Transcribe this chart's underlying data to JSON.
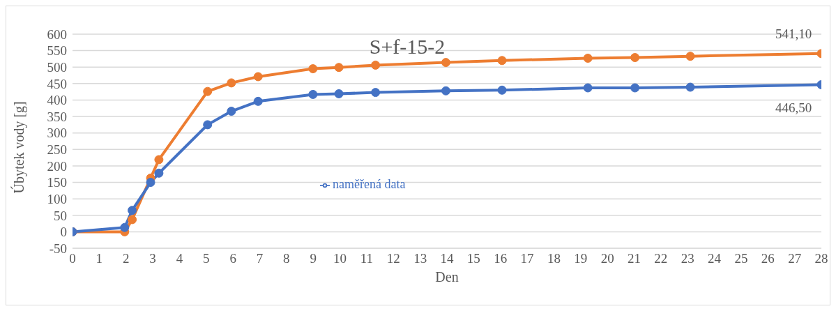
{
  "chart_data": {
    "type": "line",
    "title": "S+f-15-2",
    "xlabel": "Den",
    "ylabel": "Úbytek vody [g]",
    "x": [
      0,
      1.95,
      2.23,
      2.92,
      3.23,
      5.05,
      5.94,
      6.94,
      8.99,
      9.96,
      11.33,
      13.96,
      16.06,
      19.27,
      21.03,
      23.1,
      28
    ],
    "series": [
      {
        "color": "#ed7d31",
        "values": [
          0,
          0,
          37,
          163,
          219,
          426,
          452,
          471,
          495,
          499,
          506,
          514,
          520,
          527,
          529,
          533,
          541.1
        ],
        "value_labels": [
          null,
          null,
          null,
          null,
          null,
          null,
          null,
          null,
          null,
          null,
          null,
          null,
          null,
          null,
          null,
          null,
          "541,10"
        ]
      },
      {
        "name": "naměřená data",
        "color": "#4472c4",
        "values": [
          0,
          13,
          65,
          150,
          178,
          325,
          366,
          396,
          417,
          419,
          423,
          428,
          430,
          437,
          437,
          439,
          446.5
        ],
        "value_labels": [
          null,
          null,
          null,
          null,
          null,
          null,
          null,
          null,
          null,
          null,
          null,
          null,
          null,
          null,
          null,
          null,
          "446,50"
        ]
      }
    ],
    "xlim": [
      0,
      28
    ],
    "xticks": [
      0,
      1,
      2,
      3,
      4,
      5,
      6,
      7,
      8,
      9,
      10,
      11,
      12,
      13,
      14,
      15,
      16,
      17,
      18,
      19,
      20,
      21,
      22,
      23,
      24,
      25,
      26,
      27,
      28
    ],
    "ylim": [
      -50,
      600
    ],
    "yticks": [
      -50,
      0,
      50,
      100,
      150,
      200,
      250,
      300,
      350,
      400,
      450,
      500,
      550,
      600
    ],
    "grid": "y",
    "legend": "center",
    "marker": "circle",
    "line_style": "solid"
  }
}
